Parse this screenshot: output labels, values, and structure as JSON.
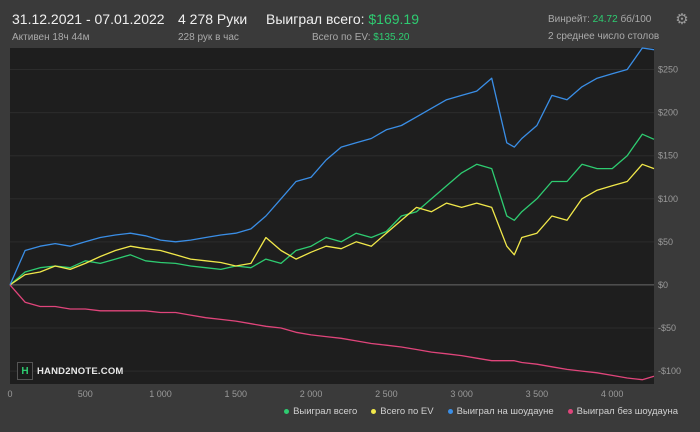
{
  "header": {
    "date_range": "31.12.2021 - 07.01.2022",
    "active_time": "Активен 18ч 44м",
    "hands": "4 278 Руки",
    "hands_per_hour": "228 рук в час",
    "won_label": "Выиграл всего:",
    "won_value": "$169.19",
    "ev_label": "Всего по EV:",
    "ev_value": "$135.20",
    "winrate_label": "Винрейт:",
    "winrate_value": "24.72",
    "winrate_unit": "бб/100",
    "avg_tables": "2 среднее число столов"
  },
  "icons": {
    "settings": "gear-icon",
    "logo": "hand2note-logo"
  },
  "logo": {
    "mark": "H",
    "text": "HAND2NOTE.COM"
  },
  "colors": {
    "won": "#2ecc71",
    "ev": "#f1e84a",
    "showdown": "#3a8ee6",
    "non_showdown": "#e0457b",
    "background": "#3a3a3a",
    "plot": "#1e1e1e"
  },
  "chart_data": {
    "type": "line",
    "xlabel": "",
    "ylabel": "",
    "xlim": [
      0,
      4278
    ],
    "ylim": [
      -115,
      275
    ],
    "x_ticks": [
      0,
      500,
      1000,
      1500,
      2000,
      2500,
      3000,
      3500,
      4000
    ],
    "x_tick_labels": [
      "0",
      "500",
      "1 000",
      "1 500",
      "2 000",
      "2 500",
      "3 000",
      "3 500",
      "4 000"
    ],
    "y_ticks": [
      250,
      200,
      150,
      100,
      50,
      0,
      -50,
      -100
    ],
    "y_tick_labels": [
      "$250",
      "$200",
      "$150",
      "$100",
      "$50",
      "$0",
      "-$50",
      "-$100"
    ],
    "grid": "horizontal",
    "legend_position": "bottom-right",
    "x": [
      0,
      100,
      200,
      300,
      400,
      500,
      600,
      700,
      800,
      900,
      1000,
      1100,
      1200,
      1300,
      1400,
      1500,
      1600,
      1700,
      1800,
      1900,
      2000,
      2100,
      2200,
      2300,
      2400,
      2500,
      2600,
      2700,
      2800,
      2900,
      3000,
      3100,
      3200,
      3300,
      3350,
      3400,
      3500,
      3600,
      3700,
      3800,
      3900,
      4000,
      4100,
      4200,
      4278
    ],
    "series": [
      {
        "name": "Выиграл всего",
        "values": [
          0,
          15,
          20,
          22,
          20,
          28,
          25,
          30,
          35,
          28,
          26,
          25,
          22,
          20,
          18,
          22,
          20,
          30,
          25,
          40,
          45,
          55,
          50,
          60,
          55,
          62,
          80,
          85,
          100,
          115,
          130,
          140,
          135,
          80,
          75,
          85,
          100,
          120,
          120,
          140,
          135,
          135,
          150,
          175,
          169
        ]
      },
      {
        "name": "Всего по EV",
        "values": [
          0,
          12,
          15,
          22,
          18,
          25,
          33,
          40,
          45,
          42,
          40,
          35,
          30,
          28,
          26,
          22,
          25,
          55,
          40,
          30,
          38,
          45,
          42,
          50,
          45,
          60,
          75,
          90,
          85,
          95,
          90,
          95,
          90,
          45,
          35,
          55,
          60,
          80,
          75,
          100,
          110,
          115,
          120,
          140,
          135
        ]
      },
      {
        "name": "Выиграл на шоудауне",
        "values": [
          0,
          40,
          45,
          48,
          45,
          50,
          55,
          58,
          60,
          57,
          52,
          50,
          52,
          55,
          58,
          60,
          65,
          80,
          100,
          120,
          125,
          145,
          160,
          165,
          170,
          180,
          185,
          195,
          205,
          215,
          220,
          225,
          240,
          165,
          160,
          170,
          185,
          220,
          215,
          230,
          240,
          245,
          250,
          275,
          273
        ]
      },
      {
        "name": "Выиграл без шоудауна",
        "values": [
          0,
          -20,
          -25,
          -25,
          -28,
          -28,
          -30,
          -30,
          -30,
          -30,
          -32,
          -32,
          -35,
          -38,
          -40,
          -42,
          -45,
          -48,
          -50,
          -55,
          -58,
          -60,
          -62,
          -65,
          -68,
          -70,
          -72,
          -75,
          -78,
          -80,
          -82,
          -85,
          -88,
          -88,
          -88,
          -90,
          -92,
          -95,
          -98,
          -100,
          -102,
          -105,
          -108,
          -110,
          -106
        ]
      }
    ]
  }
}
